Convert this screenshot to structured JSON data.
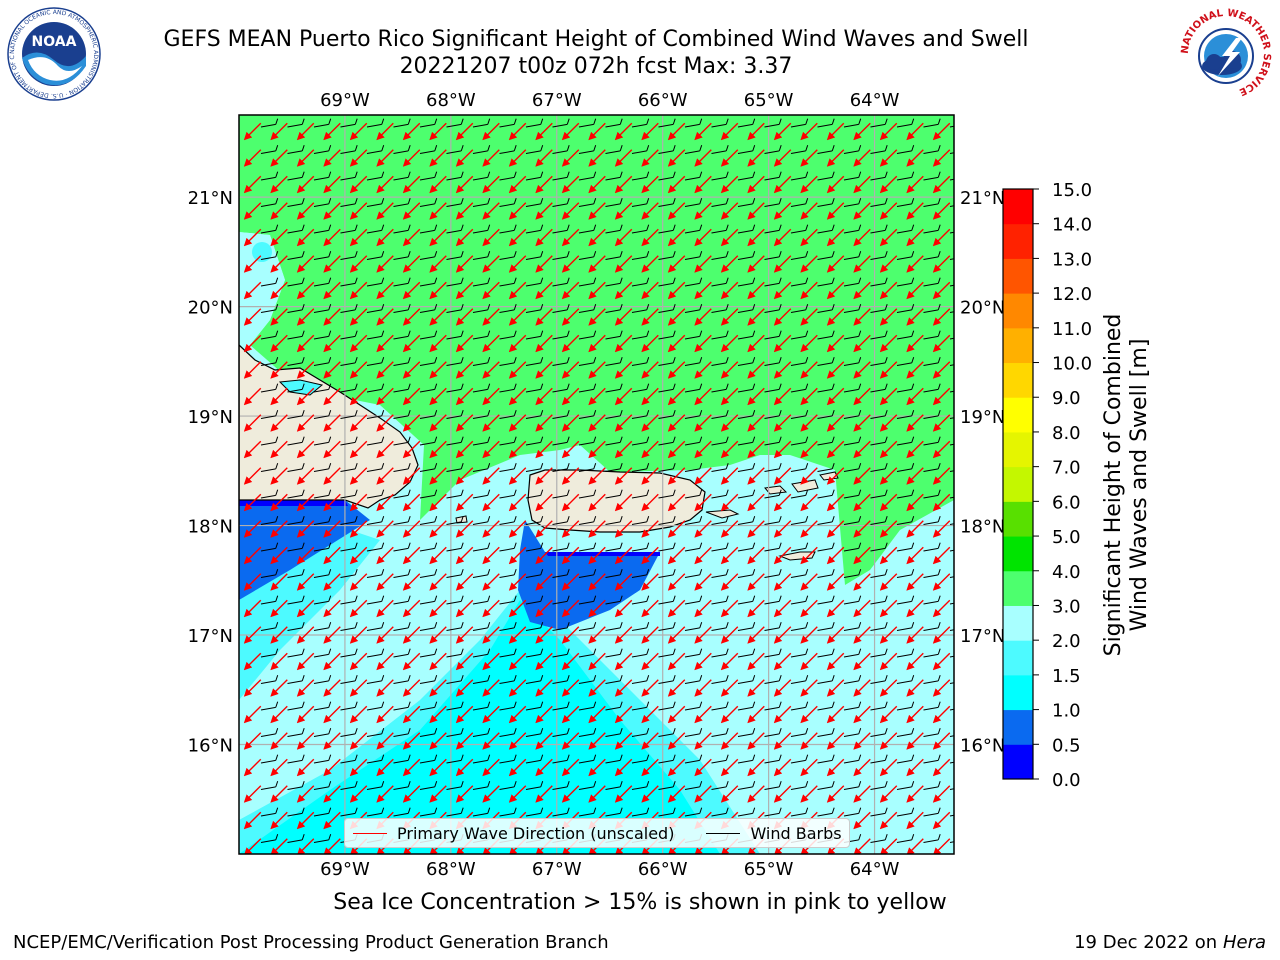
{
  "header": {
    "title_line1": "GEFS MEAN Puerto Rico Significant Height of Combined Wind Waves and Swell",
    "title_line2": "20221207 t00z 072h fcst   Max: 3.37"
  },
  "logos": {
    "left": {
      "icon": "noaa-logo-icon",
      "text": "NOAA",
      "ring_text": "NATIONAL OCEANIC AND ATMOSPHERIC ADMINISTRATION · U.S. DEPARTMENT OF COMMERCE"
    },
    "right": {
      "icon": "nws-logo-icon",
      "ring_text": "NATIONAL WEATHER SERVICE"
    }
  },
  "map": {
    "extent": {
      "lon_min": -70.0,
      "lon_max": -63.25,
      "lat_min": 15.0,
      "lat_max": 21.75
    },
    "lon_ticks": [
      {
        "value": -69,
        "label": "69°W"
      },
      {
        "value": -68,
        "label": "68°W"
      },
      {
        "value": -67,
        "label": "67°W"
      },
      {
        "value": -66,
        "label": "66°W"
      },
      {
        "value": -65,
        "label": "65°W"
      },
      {
        "value": -64,
        "label": "64°W"
      }
    ],
    "lat_ticks": [
      {
        "value": 21,
        "label": "21°N"
      },
      {
        "value": 20,
        "label": "20°N"
      },
      {
        "value": 19,
        "label": "19°N"
      },
      {
        "value": 18,
        "label": "18°N"
      },
      {
        "value": 17,
        "label": "17°N"
      },
      {
        "value": 16,
        "label": "16°N"
      }
    ],
    "wind_direction_from_deg": 80,
    "wave_direction_to_deg": 225,
    "colors": {
      "land": "#efecdc",
      "coast": "#000000",
      "grid": "#b0b0b0",
      "wave_arrow": "#ff0000",
      "wind_barb": "#000000"
    }
  },
  "legend": {
    "items": [
      {
        "label": "Primary Wave Direction (unscaled)",
        "color": "#ff0000"
      },
      {
        "label": "Wind Barbs",
        "color": "#000000"
      }
    ]
  },
  "colorbar": {
    "levels": [
      "0.0",
      "0.5",
      "1.0",
      "1.5",
      "2.0",
      "3.0",
      "4.0",
      "5.0",
      "6.0",
      "7.0",
      "8.0",
      "9.0",
      "10.0",
      "11.0",
      "12.0",
      "13.0",
      "14.0",
      "15.0"
    ],
    "colors": [
      "#0000ff",
      "#0a6af0",
      "#00ffff",
      "#4dfaff",
      "#a8ffff",
      "#4dff6e",
      "#00e400",
      "#58e000",
      "#c4f700",
      "#e5f500",
      "#ffff00",
      "#ffd700",
      "#ffb000",
      "#ff8800",
      "#ff5500",
      "#ff2200",
      "#ff0000"
    ],
    "title_line1": "Significant Height of Combined",
    "title_line2": "Wind Waves and Swell [m]"
  },
  "footer": {
    "note": "Sea Ice Concentration > 15% is shown in pink to yellow",
    "credit_left": "NCEP/EMC/Verification Post Processing Product Generation Branch",
    "credit_date": "19 Dec 2022 on",
    "credit_host": "Hera"
  }
}
